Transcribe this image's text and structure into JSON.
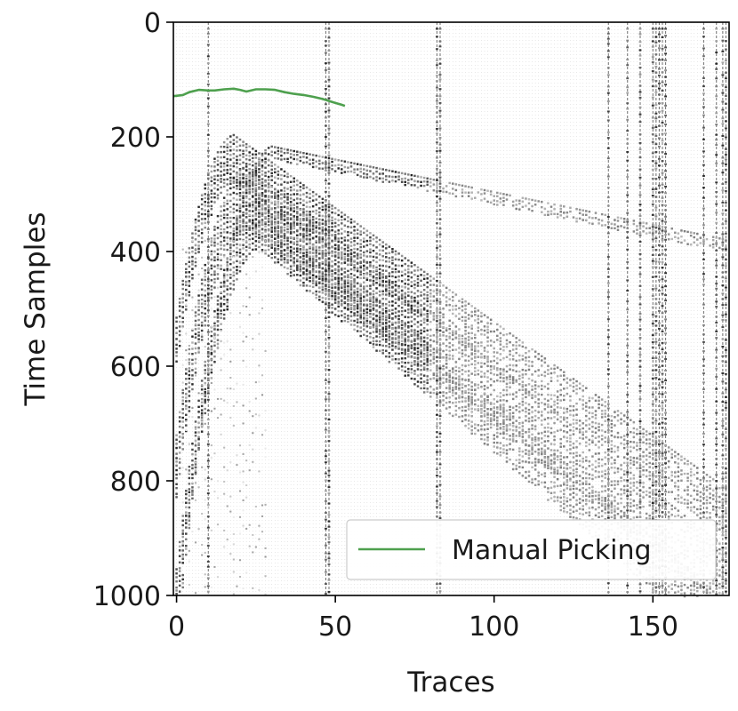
{
  "chart_data": {
    "type": "line",
    "background": "seismic gather (grayscale wiggle/variable-density image)",
    "xlabel": "Traces",
    "ylabel": "Time Samples",
    "xlim": [
      -1,
      174
    ],
    "ylim": [
      1000,
      0
    ],
    "y_inverted": true,
    "x_ticks": [
      0,
      50,
      100,
      150
    ],
    "y_ticks": [
      0,
      200,
      400,
      600,
      800,
      1000
    ],
    "x_tick_labels": [
      "0",
      "50",
      "100",
      "150"
    ],
    "y_tick_labels": [
      "0",
      "200",
      "400",
      "600",
      "800",
      "1000"
    ],
    "legend": {
      "placement": "lower-right",
      "entries": [
        "Manual Picking"
      ]
    },
    "colors": {
      "manual_picking": "#4ea04e",
      "seismic": "#000000",
      "background": "#ffffff"
    },
    "series": [
      {
        "name": "Manual Picking",
        "x": [
          -1,
          2,
          4,
          7,
          10,
          12,
          15,
          18,
          20,
          22,
          25,
          28,
          31,
          34,
          37,
          40,
          43,
          46,
          49,
          52,
          53
        ],
        "y": [
          129,
          127,
          122,
          118,
          119,
          119,
          117,
          116,
          118,
          121,
          117,
          117,
          118,
          122,
          125,
          127,
          130,
          134,
          139,
          144,
          146
        ]
      }
    ],
    "seismic_events": [
      {
        "apex_trace": 18,
        "apex_time": 195,
        "far_trace": 150,
        "far_time": 720,
        "width": 85
      },
      {
        "apex_trace": 22,
        "apex_time": 250,
        "far_trace": 150,
        "far_time": 815,
        "width": 110
      },
      {
        "apex_trace": 26,
        "apex_time": 305,
        "far_trace": 150,
        "far_time": 900,
        "width": 90
      },
      {
        "apex_trace": 30,
        "apex_time": 215,
        "far_trace": 140,
        "far_time": 340,
        "width": 22
      }
    ],
    "noisy_traces": [
      10,
      47,
      48,
      82,
      83,
      136,
      142,
      146,
      150,
      151,
      152,
      153,
      154,
      166,
      170,
      172,
      173
    ]
  }
}
